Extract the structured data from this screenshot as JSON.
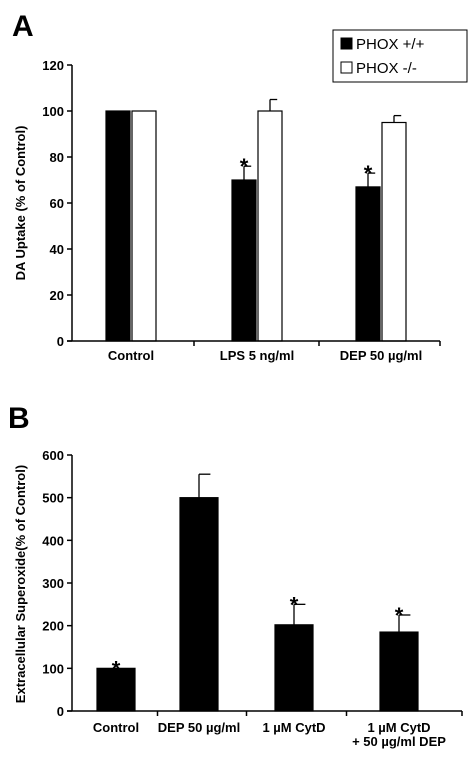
{
  "chart_data": [
    {
      "type": "bar",
      "panel": "A",
      "ylabel": "DA Uptake (% of Control)",
      "ylim": [
        0,
        120
      ],
      "yticks": [
        "0",
        "20",
        "40",
        "60",
        "80",
        "100",
        "120"
      ],
      "categories": [
        "Control",
        "LPS 5 ng/ml",
        "DEP 50 µg/ml"
      ],
      "legend_position": "top-right",
      "series": [
        {
          "name": "PHOX +/+",
          "color": "#000000",
          "values": [
            100,
            70,
            67
          ],
          "errors": [
            0,
            6,
            6
          ],
          "significant": [
            false,
            true,
            true
          ]
        },
        {
          "name": "PHOX -/-",
          "color": "#ffffff",
          "values": [
            100,
            100,
            95
          ],
          "errors": [
            0,
            5,
            3
          ],
          "significant": [
            false,
            false,
            false
          ]
        }
      ],
      "significance_marker": "*"
    },
    {
      "type": "bar",
      "panel": "B",
      "ylabel": "Extracellular Superoxide(% of Control)",
      "ylim": [
        0,
        600
      ],
      "yticks": [
        "0",
        "100",
        "200",
        "300",
        "400",
        "500",
        "600"
      ],
      "categories": [
        [
          "Control"
        ],
        [
          "DEP 50 µg/ml"
        ],
        [
          "1 µM CytD"
        ],
        [
          "1 µM CytD",
          "+ 50 µg/ml DEP"
        ]
      ],
      "series": [
        {
          "color": "#000000",
          "values": [
            100,
            500,
            202,
            185
          ],
          "errors": [
            0,
            55,
            48,
            40
          ],
          "significant": [
            true,
            false,
            true,
            true
          ]
        }
      ],
      "significance_marker": "*"
    }
  ]
}
